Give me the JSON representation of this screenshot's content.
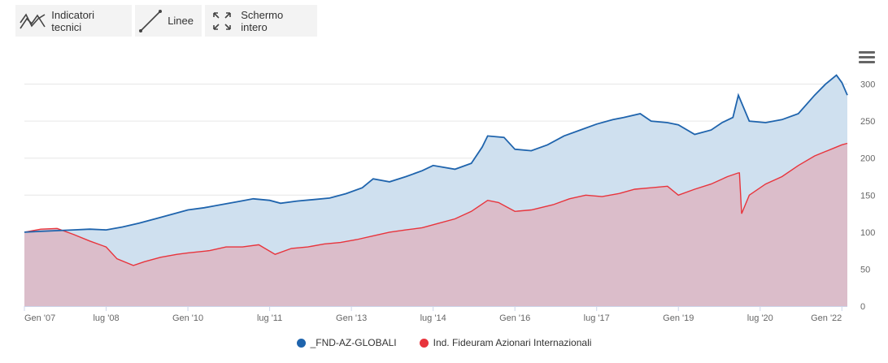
{
  "toolbar": {
    "indicators_label": "Indicatori tecnici",
    "lines_label": "Linee",
    "fullscreen_label": "Schermo intero"
  },
  "colors": {
    "fund": "#1f64ad",
    "fund_fill": "#cfe0ef",
    "index": "#e8343c",
    "index_fill": "#dbbdca",
    "grid": "#e6e6e6"
  },
  "chart_data": {
    "type": "area",
    "title": "",
    "xlabel": "",
    "ylabel": "",
    "xlim": [
      2007.0,
      2022.1
    ],
    "ylim": [
      0,
      350
    ],
    "yticks": [
      0,
      50,
      100,
      150,
      200,
      250,
      300
    ],
    "xticks": [
      {
        "x": 2007.0,
        "label": "Gen '07"
      },
      {
        "x": 2008.5,
        "label": "lug '08"
      },
      {
        "x": 2010.0,
        "label": "Gen '10"
      },
      {
        "x": 2011.5,
        "label": "lug '11"
      },
      {
        "x": 2013.0,
        "label": "Gen '13"
      },
      {
        "x": 2014.5,
        "label": "lug '14"
      },
      {
        "x": 2016.0,
        "label": "Gen '16"
      },
      {
        "x": 2017.5,
        "label": "lug '17"
      },
      {
        "x": 2019.0,
        "label": "Gen '19"
      },
      {
        "x": 2020.5,
        "label": "lug '20"
      },
      {
        "x": 2022.0,
        "label": "Gen '22"
      }
    ],
    "grid": true,
    "legend_position": "bottom",
    "series": [
      {
        "name": "_FND-AZ-GLOBALI",
        "x": [
          2007.0,
          2007.3,
          2007.6,
          2007.9,
          2008.2,
          2008.5,
          2008.8,
          2009.1,
          2009.4,
          2009.7,
          2010.0,
          2010.3,
          2010.6,
          2010.9,
          2011.2,
          2011.5,
          2011.7,
          2012.0,
          2012.3,
          2012.6,
          2012.9,
          2013.2,
          2013.4,
          2013.7,
          2014.0,
          2014.3,
          2014.5,
          2014.9,
          2015.2,
          2015.4,
          2015.5,
          2015.8,
          2016.0,
          2016.3,
          2016.6,
          2016.9,
          2017.2,
          2017.5,
          2017.8,
          2018.0,
          2018.3,
          2018.5,
          2018.8,
          2019.0,
          2019.3,
          2019.6,
          2019.8,
          2020.0,
          2020.1,
          2020.3,
          2020.6,
          2020.9,
          2021.2,
          2021.5,
          2021.7,
          2021.9,
          2022.0,
          2022.1
        ],
        "values": [
          100,
          101,
          102,
          103,
          104,
          103,
          107,
          112,
          118,
          124,
          130,
          133,
          137,
          141,
          145,
          143,
          139,
          142,
          144,
          146,
          152,
          160,
          172,
          168,
          175,
          183,
          190,
          185,
          193,
          215,
          230,
          228,
          212,
          210,
          218,
          230,
          238,
          246,
          252,
          255,
          260,
          250,
          248,
          245,
          232,
          238,
          248,
          255,
          285,
          250,
          248,
          252,
          260,
          285,
          300,
          312,
          302,
          285
        ]
      },
      {
        "name": "Ind. Fideuram Azionari Internazionali",
        "x": [
          2007.0,
          2007.3,
          2007.6,
          2007.9,
          2008.2,
          2008.5,
          2008.7,
          2009.0,
          2009.2,
          2009.5,
          2009.8,
          2010.0,
          2010.4,
          2010.7,
          2011.0,
          2011.3,
          2011.6,
          2011.9,
          2012.2,
          2012.5,
          2012.8,
          2013.1,
          2013.4,
          2013.7,
          2014.0,
          2014.3,
          2014.6,
          2014.9,
          2015.2,
          2015.5,
          2015.7,
          2016.0,
          2016.3,
          2016.7,
          2017.0,
          2017.3,
          2017.6,
          2017.9,
          2018.2,
          2018.5,
          2018.8,
          2019.0,
          2019.3,
          2019.6,
          2019.9,
          2020.1,
          2020.12,
          2020.16,
          2020.3,
          2020.6,
          2020.9,
          2021.2,
          2021.5,
          2021.8,
          2022.0,
          2022.1
        ],
        "values": [
          100,
          104,
          105,
          97,
          88,
          80,
          64,
          55,
          60,
          66,
          70,
          72,
          75,
          80,
          80,
          83,
          70,
          78,
          80,
          84,
          86,
          90,
          95,
          100,
          103,
          106,
          112,
          118,
          128,
          143,
          140,
          128,
          130,
          137,
          145,
          150,
          148,
          152,
          158,
          160,
          162,
          150,
          158,
          165,
          175,
          180,
          180,
          125,
          150,
          165,
          175,
          190,
          203,
          212,
          218,
          220
        ]
      }
    ]
  }
}
